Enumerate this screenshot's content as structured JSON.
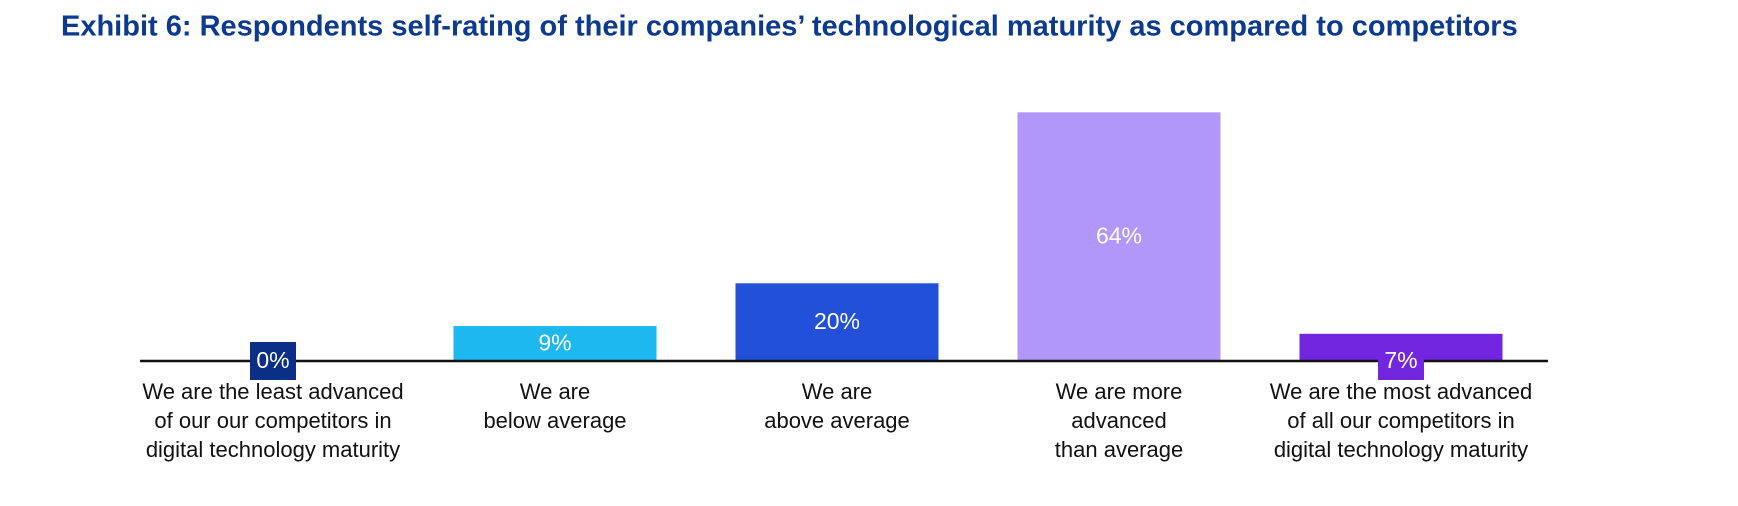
{
  "chart_data": {
    "type": "bar",
    "title": "Exhibit 6: Respondents self-rating of their companies’ technological maturity as compared to competitors",
    "categories": [
      [
        "We are the least advanced",
        "of our our competitors in",
        "digital technology maturity"
      ],
      [
        "We are",
        "below average"
      ],
      [
        "We are",
        "above average"
      ],
      [
        "We are more",
        "advanced",
        "than average"
      ],
      [
        "We are the most advanced",
        "of all our competitors in",
        "digital technology maturity"
      ]
    ],
    "values": [
      0,
      9,
      20,
      64,
      7
    ],
    "value_labels": [
      "0%",
      "9%",
      "20%",
      "64%",
      "7%"
    ],
    "colors": [
      "#0b2f86",
      "#1eb8f0",
      "#2350d8",
      "#b197fa",
      "#7326e0"
    ],
    "ylim": [
      0,
      70
    ]
  }
}
